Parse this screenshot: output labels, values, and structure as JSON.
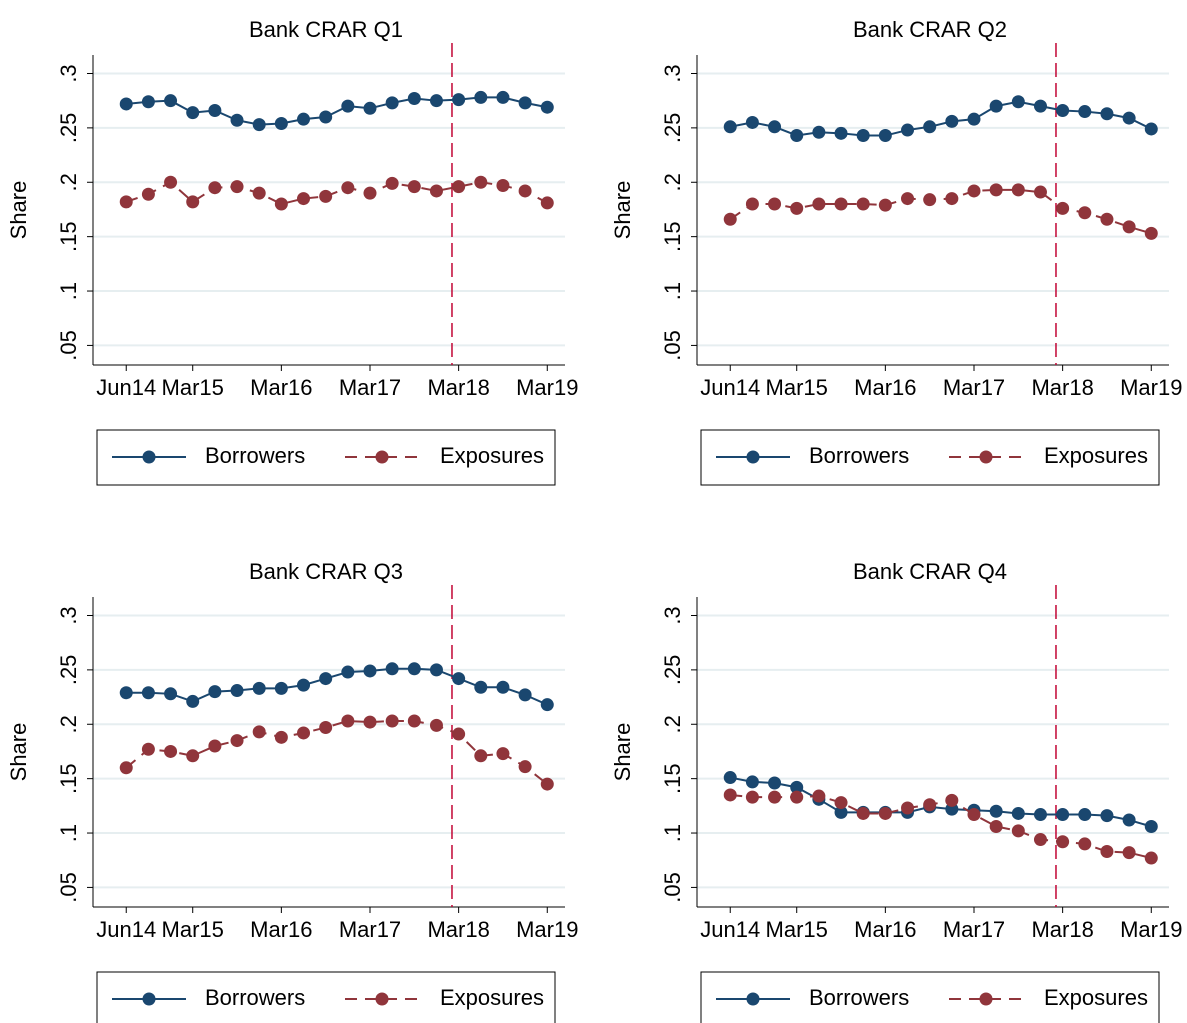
{
  "chart_data": [
    {
      "type": "line",
      "title": "Bank CRAR Q1",
      "y_label": "Share",
      "x": [
        0,
        1,
        2,
        3,
        4,
        5,
        6,
        7,
        8,
        9,
        10,
        11,
        12,
        13,
        14,
        15,
        16,
        17,
        18,
        19
      ],
      "xlim": [
        -1.5,
        19.8
      ],
      "xticks": [
        {
          "value": 0,
          "label": "Jun14"
        },
        {
          "value": 3,
          "label": "Mar15"
        },
        {
          "value": 7,
          "label": "Mar16"
        },
        {
          "value": 11,
          "label": "Mar17"
        },
        {
          "value": 15,
          "label": "Mar18"
        },
        {
          "value": 19,
          "label": "Mar19"
        }
      ],
      "ylim": [
        0.032,
        0.317
      ],
      "yticks": [
        {
          "value": 0.05,
          "label": ".05"
        },
        {
          "value": 0.1,
          "label": ".1"
        },
        {
          "value": 0.15,
          "label": ".15"
        },
        {
          "value": 0.2,
          "label": ".2"
        },
        {
          "value": 0.25,
          "label": ".25"
        },
        {
          "value": 0.3,
          "label": ".3"
        }
      ],
      "grid": true,
      "vline": 14.7,
      "vline_color": "#c10534",
      "legend": "bottom",
      "series": [
        {
          "name": "Borrowers",
          "color": "#1a476f",
          "dash": false,
          "values": [
            0.272,
            0.274,
            0.275,
            0.264,
            0.266,
            0.257,
            0.253,
            0.254,
            0.258,
            0.26,
            0.27,
            0.268,
            0.273,
            0.277,
            0.275,
            0.276,
            0.278,
            0.278,
            0.273,
            0.269
          ]
        },
        {
          "name": "Exposures",
          "color": "#90353b",
          "dash": true,
          "values": [
            0.182,
            0.189,
            0.2,
            0.182,
            0.195,
            0.196,
            0.19,
            0.18,
            0.185,
            0.187,
            0.195,
            0.19,
            0.199,
            0.196,
            0.192,
            0.196,
            0.2,
            0.197,
            0.192,
            0.181
          ]
        }
      ]
    },
    {
      "type": "line",
      "title": "Bank CRAR Q2",
      "y_label": "Share",
      "x": [
        0,
        1,
        2,
        3,
        4,
        5,
        6,
        7,
        8,
        9,
        10,
        11,
        12,
        13,
        14,
        15,
        16,
        17,
        18,
        19
      ],
      "xlim": [
        -1.5,
        19.8
      ],
      "xticks": [
        {
          "value": 0,
          "label": "Jun14"
        },
        {
          "value": 3,
          "label": "Mar15"
        },
        {
          "value": 7,
          "label": "Mar16"
        },
        {
          "value": 11,
          "label": "Mar17"
        },
        {
          "value": 15,
          "label": "Mar18"
        },
        {
          "value": 19,
          "label": "Mar19"
        }
      ],
      "ylim": [
        0.032,
        0.317
      ],
      "yticks": [
        {
          "value": 0.05,
          "label": ".05"
        },
        {
          "value": 0.1,
          "label": ".1"
        },
        {
          "value": 0.15,
          "label": ".15"
        },
        {
          "value": 0.2,
          "label": ".2"
        },
        {
          "value": 0.25,
          "label": ".25"
        },
        {
          "value": 0.3,
          "label": ".3"
        }
      ],
      "grid": true,
      "vline": 14.7,
      "vline_color": "#c10534",
      "legend": "bottom",
      "series": [
        {
          "name": "Borrowers",
          "color": "#1a476f",
          "dash": false,
          "values": [
            0.251,
            0.255,
            0.251,
            0.243,
            0.246,
            0.245,
            0.243,
            0.243,
            0.248,
            0.251,
            0.256,
            0.258,
            0.27,
            0.274,
            0.27,
            0.266,
            0.265,
            0.263,
            0.259,
            0.249
          ]
        },
        {
          "name": "Exposures",
          "color": "#90353b",
          "dash": true,
          "values": [
            0.166,
            0.18,
            0.18,
            0.176,
            0.18,
            0.18,
            0.18,
            0.179,
            0.185,
            0.184,
            0.185,
            0.192,
            0.193,
            0.193,
            0.191,
            0.176,
            0.172,
            0.166,
            0.159,
            0.153
          ]
        }
      ]
    },
    {
      "type": "line",
      "title": "Bank CRAR Q3",
      "y_label": "Share",
      "x": [
        0,
        1,
        2,
        3,
        4,
        5,
        6,
        7,
        8,
        9,
        10,
        11,
        12,
        13,
        14,
        15,
        16,
        17,
        18,
        19
      ],
      "xlim": [
        -1.5,
        19.8
      ],
      "xticks": [
        {
          "value": 0,
          "label": "Jun14"
        },
        {
          "value": 3,
          "label": "Mar15"
        },
        {
          "value": 7,
          "label": "Mar16"
        },
        {
          "value": 11,
          "label": "Mar17"
        },
        {
          "value": 15,
          "label": "Mar18"
        },
        {
          "value": 19,
          "label": "Mar19"
        }
      ],
      "ylim": [
        0.032,
        0.317
      ],
      "yticks": [
        {
          "value": 0.05,
          "label": ".05"
        },
        {
          "value": 0.1,
          "label": ".1"
        },
        {
          "value": 0.15,
          "label": ".15"
        },
        {
          "value": 0.2,
          "label": ".2"
        },
        {
          "value": 0.25,
          "label": ".25"
        },
        {
          "value": 0.3,
          "label": ".3"
        }
      ],
      "grid": true,
      "vline": 14.7,
      "vline_color": "#c10534",
      "legend": "bottom",
      "series": [
        {
          "name": "Borrowers",
          "color": "#1a476f",
          "dash": false,
          "values": [
            0.229,
            0.229,
            0.228,
            0.221,
            0.23,
            0.231,
            0.233,
            0.233,
            0.236,
            0.242,
            0.248,
            0.249,
            0.251,
            0.251,
            0.25,
            0.242,
            0.234,
            0.234,
            0.227,
            0.218
          ]
        },
        {
          "name": "Exposures",
          "color": "#90353b",
          "dash": true,
          "values": [
            0.16,
            0.177,
            0.175,
            0.171,
            0.18,
            0.185,
            0.193,
            0.188,
            0.192,
            0.197,
            0.203,
            0.202,
            0.203,
            0.203,
            0.199,
            0.191,
            0.171,
            0.173,
            0.161,
            0.145
          ]
        }
      ]
    },
    {
      "type": "line",
      "title": "Bank CRAR Q4",
      "y_label": "Share",
      "x": [
        0,
        1,
        2,
        3,
        4,
        5,
        6,
        7,
        8,
        9,
        10,
        11,
        12,
        13,
        14,
        15,
        16,
        17,
        18,
        19
      ],
      "xlim": [
        -1.5,
        19.8
      ],
      "xticks": [
        {
          "value": 0,
          "label": "Jun14"
        },
        {
          "value": 3,
          "label": "Mar15"
        },
        {
          "value": 7,
          "label": "Mar16"
        },
        {
          "value": 11,
          "label": "Mar17"
        },
        {
          "value": 15,
          "label": "Mar18"
        },
        {
          "value": 19,
          "label": "Mar19"
        }
      ],
      "ylim": [
        0.032,
        0.317
      ],
      "yticks": [
        {
          "value": 0.05,
          "label": ".05"
        },
        {
          "value": 0.1,
          "label": ".1"
        },
        {
          "value": 0.15,
          "label": ".15"
        },
        {
          "value": 0.2,
          "label": ".2"
        },
        {
          "value": 0.25,
          "label": ".25"
        },
        {
          "value": 0.3,
          "label": ".3"
        }
      ],
      "grid": true,
      "vline": 14.7,
      "vline_color": "#c10534",
      "legend": "bottom",
      "series": [
        {
          "name": "Borrowers",
          "color": "#1a476f",
          "dash": false,
          "values": [
            0.151,
            0.147,
            0.146,
            0.142,
            0.131,
            0.119,
            0.119,
            0.119,
            0.119,
            0.124,
            0.122,
            0.121,
            0.12,
            0.118,
            0.117,
            0.117,
            0.117,
            0.116,
            0.112,
            0.106
          ]
        },
        {
          "name": "Exposures",
          "color": "#90353b",
          "dash": true,
          "values": [
            0.135,
            0.133,
            0.133,
            0.133,
            0.134,
            0.128,
            0.118,
            0.118,
            0.123,
            0.126,
            0.13,
            0.117,
            0.106,
            0.102,
            0.094,
            0.092,
            0.09,
            0.083,
            0.082,
            0.077
          ]
        }
      ]
    }
  ]
}
